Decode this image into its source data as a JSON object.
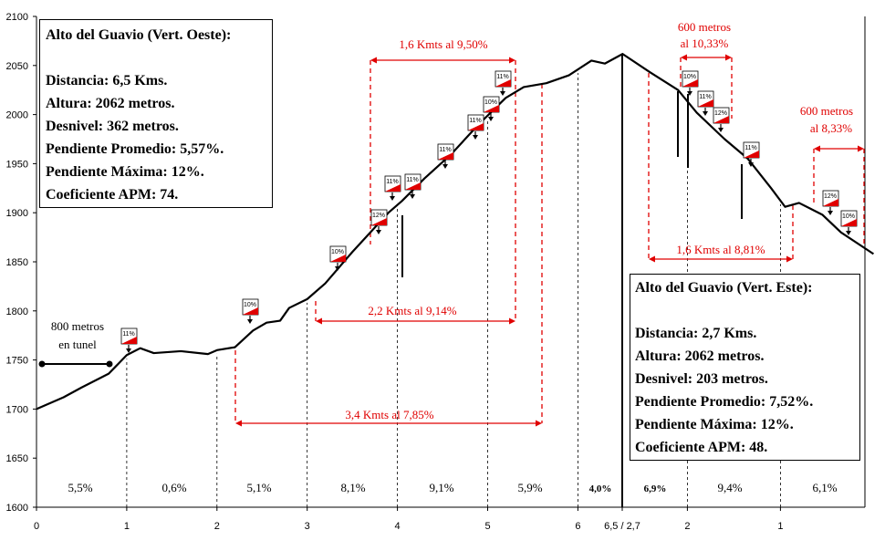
{
  "chart_data": {
    "type": "line",
    "title": "Alto del Guavio",
    "ylim": [
      1600,
      2100
    ],
    "yticks": [
      1600,
      1650,
      1700,
      1750,
      1800,
      1850,
      1900,
      1950,
      2000,
      2050,
      2100
    ],
    "x_tick_labels": [
      "0",
      "1",
      "2",
      "3",
      "4",
      "5",
      "6",
      "6,5 / 2,7",
      "2",
      "1"
    ],
    "west": {
      "x_km": [
        0,
        0.3,
        0.5,
        0.8,
        1.0,
        1.15,
        1.3,
        1.6,
        1.9,
        2.0,
        2.2,
        2.4,
        2.55,
        2.7,
        2.8,
        3.0,
        3.2,
        3.5,
        3.7,
        3.9,
        4.05,
        4.3,
        4.6,
        4.9,
        5.2,
        5.4,
        5.65,
        5.9,
        6.15,
        6.3,
        6.5
      ],
      "elev_m": [
        1700,
        1712,
        1722,
        1736,
        1755,
        1762,
        1757,
        1759,
        1756,
        1760,
        1763,
        1780,
        1788,
        1790,
        1803,
        1812,
        1828,
        1860,
        1880,
        1900,
        1912,
        1935,
        1960,
        1990,
        2017,
        2028,
        2032,
        2040,
        2055,
        2052,
        2062
      ]
    },
    "east": {
      "x_km": [
        2.7,
        2.4,
        2.1,
        1.9,
        1.6,
        1.35,
        1.1,
        0.95,
        0.8,
        0.55,
        0.35,
        0.0
      ],
      "elev_m": [
        2062,
        2043,
        2025,
        2002,
        1975,
        1955,
        1925,
        1906,
        1910,
        1898,
        1880,
        1858
      ]
    },
    "segments": [
      "5,5%",
      "0,6%",
      "5,1%",
      "8,1%",
      "9,1%",
      "5,9%",
      "4,0%",
      "6,9%",
      "9,4%",
      "6,1%"
    ],
    "gradient_markers": [
      "11%",
      "10%",
      "10%",
      "12%",
      "11%",
      "11%",
      "11%",
      "11%",
      "10%",
      "11%",
      "10%",
      "11%",
      "12%",
      "11%",
      "12%",
      "10%"
    ],
    "annotations": {
      "tunnel": [
        "800 metros",
        "en tunel"
      ],
      "w1": "1,6 Kmts al 9,50%",
      "w2": "2,2 Kmts al 9,14%",
      "w3": "3,4 Kmts al 7,85%",
      "e1": [
        "600 metros",
        "al 10,33%"
      ],
      "e2": [
        "600 metros",
        "al 8,33%"
      ],
      "e3": "1,6 Kmts al 8,81%"
    }
  },
  "west_box": {
    "title": "Alto del Guavio (Vert. Oeste):",
    "distancia": "Distancia: 6,5 Kms.",
    "altura": "Altura: 2062 metros.",
    "desnivel": "Desnivel: 362 metros.",
    "promedio": "Pendiente Promedio: 5,57%.",
    "maxima": "Pendiente Máxima: 12%.",
    "apm": "Coeficiente APM: 74."
  },
  "east_box": {
    "title": "Alto del Guavio (Vert. Este):",
    "distancia": "Distancia: 2,7 Kms.",
    "altura": "Altura: 2062 metros.",
    "desnivel": "Desnivel: 203 metros.",
    "promedio": "Pendiente Promedio: 7,52%.",
    "maxima": "Pendiente Máxima: 12%.",
    "apm": "Coeficiente APM: 48."
  },
  "colors": {
    "accent": "#e00000",
    "line": "#000000"
  }
}
